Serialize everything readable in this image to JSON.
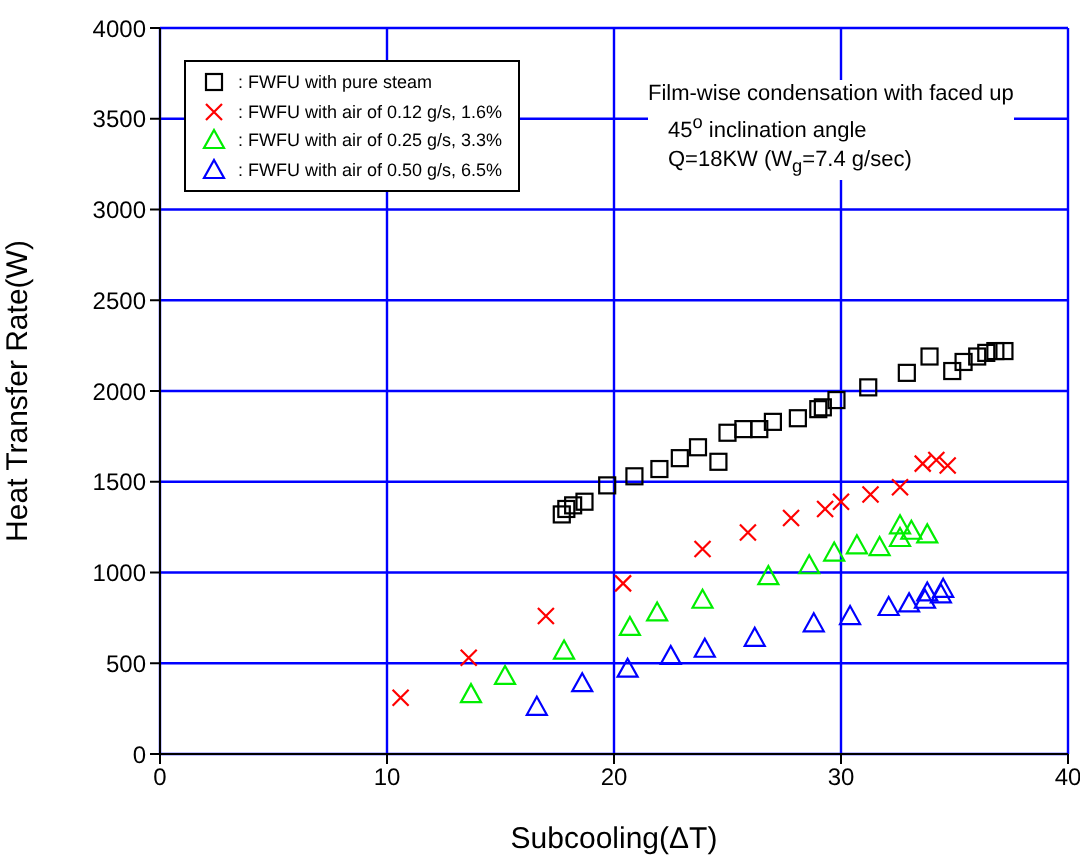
{
  "chart_data": {
    "type": "scatter",
    "xlabel": "Subcooling(ΔT)",
    "ylabel": "Heat Transfer Rate(W)",
    "xlim": [
      0,
      40
    ],
    "xticks": [
      0,
      10,
      20,
      30,
      40
    ],
    "ylim": [
      0,
      4000
    ],
    "yticks": [
      0,
      500,
      1000,
      1500,
      2000,
      2500,
      3000,
      3500,
      4000
    ],
    "grid": true,
    "legend": "top left",
    "annotations": [
      "Film-wise condensation with faced up",
      "45$^{o}$ inclination angle",
      "Q=18KW (W$_{g}$=7.4 g/sec)"
    ],
    "series": [
      {
        "name": ": FWFU with pure steam",
        "color": "#000000",
        "marker": "square",
        "x": [
          17.7,
          17.9,
          18.2,
          18.7,
          19.7,
          20.9,
          22.0,
          22.9,
          23.7,
          24.6,
          25.0,
          25.7,
          26.4,
          27.0,
          28.1,
          29.0,
          29.2,
          29.8,
          31.2,
          32.9,
          33.9,
          34.9,
          35.4,
          36.0,
          36.4,
          36.8,
          37.2
        ],
        "values": [
          1320,
          1350,
          1370,
          1390,
          1480,
          1530,
          1570,
          1630,
          1690,
          1610,
          1770,
          1790,
          1790,
          1830,
          1850,
          1900,
          1910,
          1950,
          2020,
          2100,
          2190,
          2110,
          2160,
          2190,
          2210,
          2220,
          2220
        ]
      },
      {
        "name": ": FWFU with air of 0.12 g/s, 1.6%",
        "color": "#ff0000",
        "marker": "cross",
        "x": [
          10.6,
          13.6,
          17.0,
          20.4,
          23.9,
          25.9,
          27.8,
          29.3,
          30.0,
          31.3,
          32.6,
          33.6,
          34.2,
          34.7
        ],
        "values": [
          310,
          530,
          760,
          940,
          1130,
          1220,
          1300,
          1350,
          1390,
          1430,
          1470,
          1600,
          1620,
          1590
        ]
      },
      {
        "name": ": FWFU with air of 0.25 g/s, 3.3%",
        "color": "#00ee00",
        "marker": "triangle",
        "x": [
          13.7,
          15.2,
          17.8,
          20.7,
          21.9,
          23.9,
          26.8,
          28.6,
          29.7,
          30.7,
          31.7,
          32.6,
          32.6,
          33.1,
          33.8
        ],
        "values": [
          330,
          430,
          570,
          700,
          780,
          850,
          980,
          1040,
          1110,
          1150,
          1140,
          1260,
          1190,
          1230,
          1210
        ]
      },
      {
        "name": ": FWFU with air of 0.50 g/s, 6.5%",
        "color": "#0000ff",
        "marker": "triangle",
        "x": [
          16.6,
          18.6,
          20.6,
          22.5,
          24.0,
          26.2,
          28.8,
          30.4,
          32.1,
          33.0,
          33.7,
          33.8,
          34.4,
          34.5
        ],
        "values": [
          260,
          390,
          470,
          540,
          580,
          640,
          720,
          760,
          810,
          830,
          850,
          890,
          880,
          910
        ]
      }
    ]
  }
}
